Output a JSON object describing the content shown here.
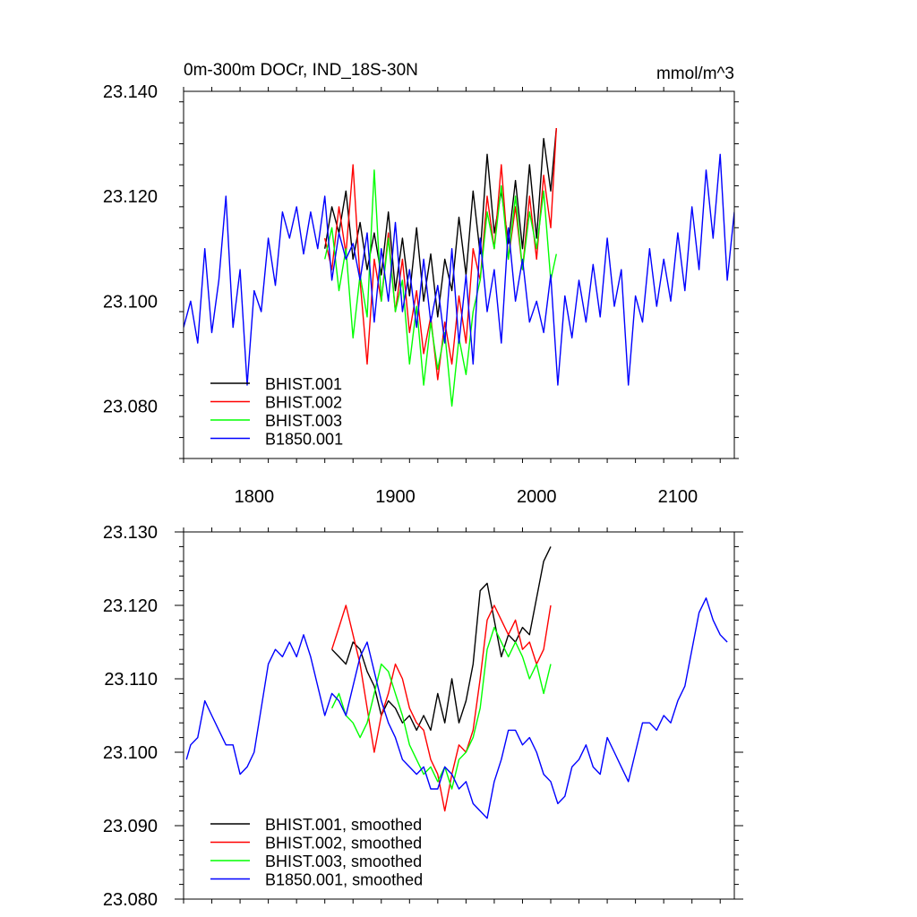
{
  "chart_data": [
    {
      "type": "line",
      "title": "0m-300m DOCr, IND_18S-30N",
      "units": "mmol/m^3",
      "xlim": [
        1750,
        2140
      ],
      "ylim": [
        23.07,
        23.14
      ],
      "xticks": [
        1800,
        1900,
        2000,
        2100
      ],
      "xtick_labels": [
        "1800",
        "1900",
        "2000",
        "2100"
      ],
      "yticks": [
        23.08,
        23.1,
        23.12,
        23.14
      ],
      "ytick_labels": [
        "23.080",
        "23.100",
        "23.120",
        "23.140"
      ],
      "legend_position": "bottom-left",
      "series": [
        {
          "name": "BHIST.001",
          "color": "#000000",
          "x": [
            1850,
            1855,
            1860,
            1865,
            1870,
            1875,
            1880,
            1885,
            1890,
            1895,
            1900,
            1905,
            1910,
            1915,
            1920,
            1925,
            1930,
            1935,
            1940,
            1945,
            1950,
            1955,
            1960,
            1965,
            1970,
            1975,
            1980,
            1985,
            1990,
            1995,
            2000,
            2005,
            2010,
            2014
          ],
          "y": [
            23.11,
            23.118,
            23.113,
            23.121,
            23.108,
            23.115,
            23.106,
            23.113,
            23.105,
            23.117,
            23.102,
            23.112,
            23.101,
            23.114,
            23.1,
            23.109,
            23.097,
            23.108,
            23.102,
            23.116,
            23.105,
            23.121,
            23.109,
            23.128,
            23.113,
            23.121,
            23.111,
            23.123,
            23.11,
            23.126,
            23.112,
            23.131,
            23.121,
            23.133
          ]
        },
        {
          "name": "BHIST.002",
          "color": "#ff0000",
          "x": [
            1850,
            1855,
            1860,
            1865,
            1870,
            1875,
            1880,
            1885,
            1890,
            1895,
            1900,
            1905,
            1910,
            1915,
            1920,
            1925,
            1930,
            1935,
            1940,
            1945,
            1950,
            1955,
            1960,
            1965,
            1970,
            1975,
            1980,
            1985,
            1990,
            1995,
            2000,
            2005,
            2010,
            2014
          ],
          "y": [
            23.112,
            23.106,
            23.118,
            23.109,
            23.126,
            23.104,
            23.088,
            23.108,
            23.1,
            23.113,
            23.098,
            23.108,
            23.094,
            23.102,
            23.09,
            23.097,
            23.085,
            23.096,
            23.088,
            23.101,
            23.092,
            23.11,
            23.104,
            23.12,
            23.11,
            23.126,
            23.108,
            23.118,
            23.106,
            23.12,
            23.108,
            23.124,
            23.114,
            23.133
          ]
        },
        {
          "name": "BHIST.003",
          "color": "#00ff00",
          "x": [
            1850,
            1855,
            1860,
            1865,
            1870,
            1875,
            1880,
            1885,
            1890,
            1895,
            1900,
            1905,
            1910,
            1915,
            1920,
            1925,
            1930,
            1935,
            1940,
            1945,
            1950,
            1955,
            1960,
            1965,
            1970,
            1975,
            1980,
            1985,
            1990,
            1995,
            2000,
            2005,
            2010,
            2014
          ],
          "y": [
            23.108,
            23.114,
            23.102,
            23.11,
            23.093,
            23.105,
            23.097,
            23.125,
            23.1,
            23.112,
            23.098,
            23.104,
            23.088,
            23.099,
            23.084,
            23.096,
            23.087,
            23.094,
            23.08,
            23.093,
            23.086,
            23.098,
            23.104,
            23.117,
            23.11,
            23.122,
            23.108,
            23.12,
            23.106,
            23.117,
            23.11,
            23.121,
            23.104,
            23.109
          ]
        },
        {
          "name": "B1850.001",
          "color": "#0000ff",
          "x": [
            1750,
            1755,
            1760,
            1765,
            1770,
            1775,
            1780,
            1785,
            1790,
            1795,
            1800,
            1805,
            1810,
            1815,
            1820,
            1825,
            1830,
            1835,
            1840,
            1845,
            1850,
            1855,
            1860,
            1865,
            1870,
            1875,
            1880,
            1885,
            1890,
            1895,
            1900,
            1905,
            1910,
            1915,
            1920,
            1925,
            1930,
            1935,
            1940,
            1945,
            1950,
            1955,
            1960,
            1965,
            1970,
            1975,
            1980,
            1985,
            1990,
            1995,
            2000,
            2005,
            2010,
            2015,
            2020,
            2025,
            2030,
            2035,
            2040,
            2045,
            2050,
            2055,
            2060,
            2065,
            2070,
            2075,
            2080,
            2085,
            2090,
            2095,
            2100,
            2105,
            2110,
            2115,
            2120,
            2125,
            2130,
            2135,
            2140
          ],
          "y": [
            23.095,
            23.1,
            23.092,
            23.11,
            23.094,
            23.104,
            23.12,
            23.095,
            23.106,
            23.084,
            23.102,
            23.098,
            23.112,
            23.103,
            23.117,
            23.112,
            23.118,
            23.109,
            23.117,
            23.11,
            23.12,
            23.104,
            23.113,
            23.108,
            23.111,
            23.104,
            23.113,
            23.096,
            23.11,
            23.1,
            23.115,
            23.098,
            23.106,
            23.095,
            23.108,
            23.096,
            23.103,
            23.092,
            23.11,
            23.092,
            23.105,
            23.088,
            23.112,
            23.098,
            23.106,
            23.092,
            23.114,
            23.1,
            23.108,
            23.096,
            23.1,
            23.094,
            23.105,
            23.084,
            23.101,
            23.093,
            23.104,
            23.096,
            23.107,
            23.097,
            23.112,
            23.099,
            23.106,
            23.084,
            23.101,
            23.096,
            23.11,
            23.099,
            23.108,
            23.1,
            23.113,
            23.102,
            23.118,
            23.106,
            23.125,
            23.112,
            23.128,
            23.104,
            23.117
          ]
        }
      ]
    },
    {
      "type": "line",
      "xlim": [
        1750,
        2140
      ],
      "ylim": [
        23.08,
        23.13
      ],
      "xticks": [
        1800,
        1900,
        2000,
        2100
      ],
      "yticks": [
        23.08,
        23.09,
        23.1,
        23.11,
        23.12,
        23.13
      ],
      "ytick_labels": [
        "23.080",
        "23.090",
        "23.100",
        "23.110",
        "23.120",
        "23.130"
      ],
      "legend_position": "bottom-left",
      "series": [
        {
          "name": "BHIST.001, smoothed",
          "color": "#000000",
          "x": [
            1855,
            1860,
            1865,
            1870,
            1875,
            1880,
            1885,
            1890,
            1895,
            1900,
            1905,
            1910,
            1915,
            1920,
            1925,
            1930,
            1935,
            1940,
            1945,
            1950,
            1955,
            1960,
            1965,
            1970,
            1975,
            1980,
            1985,
            1990,
            1995,
            2000,
            2005,
            2010
          ],
          "y": [
            23.114,
            23.113,
            23.112,
            23.115,
            23.114,
            23.111,
            23.109,
            23.105,
            23.107,
            23.106,
            23.104,
            23.105,
            23.103,
            23.105,
            23.103,
            23.108,
            23.104,
            23.11,
            23.104,
            23.107,
            23.112,
            23.122,
            23.123,
            23.118,
            23.113,
            23.116,
            23.115,
            23.117,
            23.116,
            23.121,
            23.126,
            23.128
          ]
        },
        {
          "name": "BHIST.002, smoothed",
          "color": "#ff0000",
          "x": [
            1855,
            1860,
            1865,
            1870,
            1875,
            1880,
            1885,
            1890,
            1895,
            1900,
            1905,
            1910,
            1915,
            1920,
            1925,
            1930,
            1935,
            1940,
            1945,
            1950,
            1955,
            1960,
            1965,
            1970,
            1975,
            1980,
            1985,
            1990,
            1995,
            2000,
            2005,
            2010
          ],
          "y": [
            23.114,
            23.117,
            23.12,
            23.116,
            23.112,
            23.106,
            23.1,
            23.105,
            23.108,
            23.112,
            23.11,
            23.106,
            23.104,
            23.103,
            23.099,
            23.097,
            23.092,
            23.097,
            23.101,
            23.1,
            23.103,
            23.11,
            23.118,
            23.12,
            23.118,
            23.116,
            23.118,
            23.114,
            23.115,
            23.112,
            23.114,
            23.12
          ]
        },
        {
          "name": "BHIST.003, smoothed",
          "color": "#00ff00",
          "x": [
            1855,
            1860,
            1865,
            1870,
            1875,
            1880,
            1885,
            1890,
            1895,
            1900,
            1905,
            1910,
            1915,
            1920,
            1925,
            1930,
            1935,
            1940,
            1945,
            1950,
            1955,
            1960,
            1965,
            1970,
            1975,
            1980,
            1985,
            1990,
            1995,
            2000,
            2005,
            2010
          ],
          "y": [
            23.106,
            23.108,
            23.105,
            23.104,
            23.102,
            23.104,
            23.108,
            23.112,
            23.111,
            23.108,
            23.105,
            23.101,
            23.099,
            23.097,
            23.098,
            23.096,
            23.098,
            23.095,
            23.099,
            23.1,
            23.102,
            23.106,
            23.114,
            23.117,
            23.115,
            23.113,
            23.115,
            23.113,
            23.11,
            23.112,
            23.108,
            23.112
          ]
        },
        {
          "name": "B1850.001, smoothed",
          "color": "#0000ff",
          "x": [
            1752,
            1755,
            1760,
            1765,
            1770,
            1775,
            1780,
            1785,
            1790,
            1795,
            1800,
            1805,
            1810,
            1815,
            1820,
            1825,
            1830,
            1835,
            1840,
            1845,
            1850,
            1855,
            1860,
            1865,
            1870,
            1875,
            1880,
            1885,
            1890,
            1895,
            1900,
            1905,
            1910,
            1915,
            1920,
            1925,
            1930,
            1935,
            1940,
            1945,
            1950,
            1955,
            1960,
            1965,
            1970,
            1975,
            1980,
            1985,
            1990,
            1995,
            2000,
            2005,
            2010,
            2015,
            2020,
            2025,
            2030,
            2035,
            2040,
            2045,
            2050,
            2055,
            2060,
            2065,
            2070,
            2075,
            2080,
            2085,
            2090,
            2095,
            2100,
            2105,
            2110,
            2115,
            2120,
            2125,
            2130,
            2135
          ],
          "y": [
            23.099,
            23.101,
            23.102,
            23.107,
            23.105,
            23.103,
            23.101,
            23.101,
            23.097,
            23.098,
            23.1,
            23.106,
            23.112,
            23.114,
            23.113,
            23.115,
            23.113,
            23.116,
            23.113,
            23.109,
            23.105,
            23.108,
            23.107,
            23.105,
            23.109,
            23.113,
            23.115,
            23.111,
            23.107,
            23.104,
            23.102,
            23.099,
            23.098,
            23.097,
            23.098,
            23.095,
            23.095,
            23.098,
            23.097,
            23.095,
            23.096,
            23.093,
            23.092,
            23.091,
            23.096,
            23.099,
            23.103,
            23.103,
            23.101,
            23.102,
            23.1,
            23.097,
            23.096,
            23.093,
            23.094,
            23.098,
            23.099,
            23.101,
            23.098,
            23.097,
            23.102,
            23.1,
            23.098,
            23.096,
            23.1,
            23.104,
            23.104,
            23.103,
            23.105,
            23.104,
            23.107,
            23.109,
            23.114,
            23.119,
            23.121,
            23.118,
            23.116,
            23.115
          ]
        }
      ]
    }
  ]
}
